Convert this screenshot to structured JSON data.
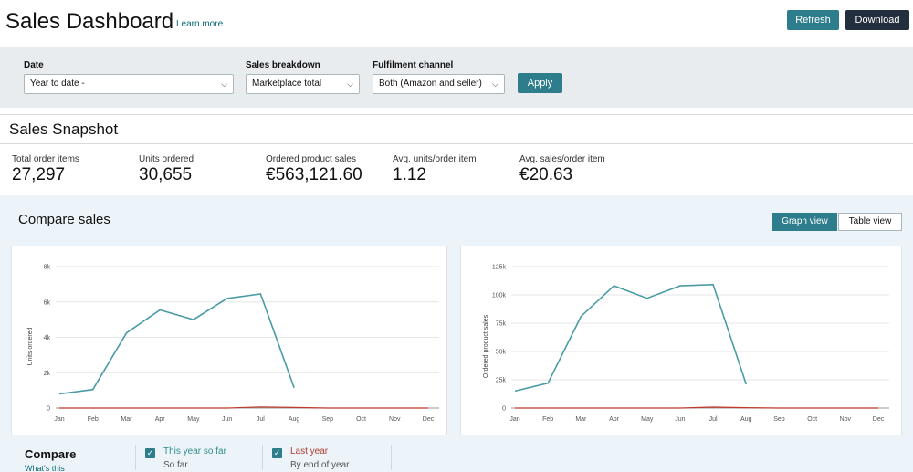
{
  "header": {
    "title": "Sales Dashboard",
    "learn_more": "Learn more",
    "refresh_label": "Refresh",
    "download_label": "Download"
  },
  "filters": {
    "date_label": "Date",
    "date_value": "Year to date -",
    "breakdown_label": "Sales breakdown",
    "breakdown_value": "Marketplace total",
    "channel_label": "Fulfilment channel",
    "channel_value": "Both (Amazon and seller)",
    "apply_label": "Apply"
  },
  "snapshot": {
    "title": "Sales Snapshot",
    "metrics": [
      {
        "label": "Total order items",
        "value": "27,297"
      },
      {
        "label": "Units ordered",
        "value": "30,655"
      },
      {
        "label": "Ordered product sales",
        "value": "€563,121.60"
      },
      {
        "label": "Avg. units/order item",
        "value": "1.12"
      },
      {
        "label": "Avg. sales/order item",
        "value": "€20.63"
      }
    ]
  },
  "compare": {
    "title": "Compare sales",
    "graph_view": "Graph view",
    "table_view": "Table view",
    "compare_label": "Compare",
    "whats_this": "What's this",
    "this_year_label": "This year so far",
    "this_year_sub": "So far",
    "last_year_label": "Last year",
    "last_year_sub": "By end of year"
  },
  "colors": {
    "teal": "#2e7d8c",
    "this_year_line": "#4a9ba5",
    "last_year_line": "#c0392b",
    "dark": "#232f3e"
  },
  "chart_data": [
    {
      "type": "line",
      "ylabel": "Units ordered",
      "x": [
        "Jan",
        "Feb",
        "Mar",
        "Apr",
        "May",
        "Jun",
        "Jul",
        "Aug",
        "Sep",
        "Oct",
        "Nov",
        "Dec"
      ],
      "ylim": [
        0,
        8000
      ],
      "yticks": [
        0,
        2000,
        4000,
        6000,
        8000
      ],
      "ytick_labels": [
        "0",
        "2k",
        "4k",
        "6k",
        "8k"
      ],
      "series": [
        {
          "values": [
            800,
            1050,
            4250,
            5550,
            5000,
            6200,
            6450,
            1150,
            null,
            null,
            null,
            null
          ]
        },
        {
          "values": [
            0,
            0,
            0,
            0,
            0,
            0,
            60,
            30,
            0,
            0,
            0,
            0
          ]
        }
      ]
    },
    {
      "type": "line",
      "ylabel": "Ordered product sales",
      "x": [
        "Jan",
        "Feb",
        "Mar",
        "Apr",
        "May",
        "Jun",
        "Jul",
        "Aug",
        "Sep",
        "Oct",
        "Nov",
        "Dec"
      ],
      "ylim": [
        0,
        125000
      ],
      "yticks": [
        0,
        25000,
        50000,
        75000,
        100000,
        125000
      ],
      "ytick_labels": [
        "0",
        "25k",
        "50k",
        "75k",
        "100k",
        "125k"
      ],
      "series": [
        {
          "values": [
            15000,
            22000,
            81000,
            108000,
            97000,
            108000,
            109000,
            21000,
            null,
            null,
            null,
            null
          ]
        },
        {
          "values": [
            0,
            0,
            0,
            0,
            0,
            0,
            800,
            300,
            0,
            0,
            0,
            0
          ]
        }
      ]
    }
  ]
}
